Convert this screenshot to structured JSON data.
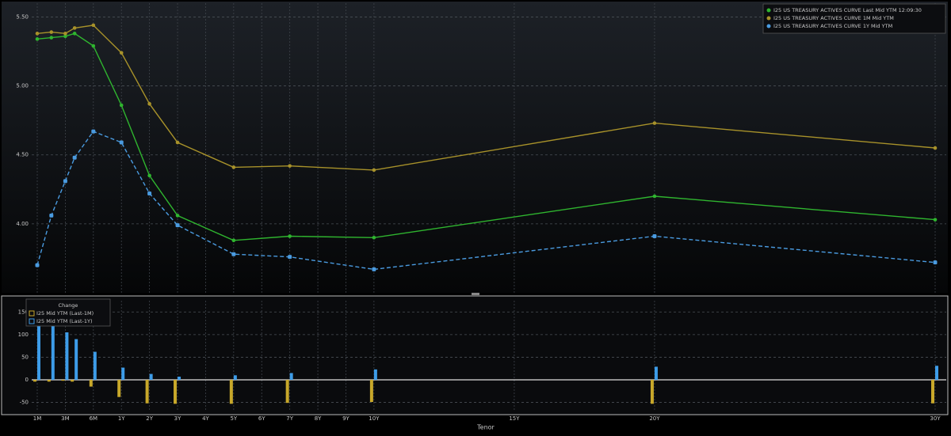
{
  "chart_data": [
    {
      "type": "line",
      "x": [
        0.083,
        0.167,
        0.25,
        0.333,
        0.5,
        1,
        2,
        3,
        5,
        7,
        10,
        20,
        30
      ],
      "xlim": [
        0.083,
        30
      ],
      "series": [
        {
          "name": "I25 US TREASURY ACTIVES CURVE Last Mid YTM 12:09:30",
          "color": "#2fb52f",
          "linestyle": "solid",
          "values": [
            5.34,
            5.35,
            5.36,
            5.38,
            5.29,
            4.86,
            4.35,
            4.06,
            3.88,
            3.91,
            3.9,
            4.2,
            4.03
          ]
        },
        {
          "name": "I25 US TREASURY ACTIVES CURVE 1M Mid YTM",
          "color": "#a8922a",
          "linestyle": "solid",
          "values": [
            5.38,
            5.39,
            5.38,
            5.42,
            5.44,
            5.24,
            4.87,
            4.59,
            4.41,
            4.42,
            4.39,
            4.73,
            4.55
          ]
        },
        {
          "name": "I25 US TREASURY ACTIVES CURVE 1Y Mid YTM",
          "color": "#4a9be0",
          "linestyle": "dashed",
          "values": [
            3.7,
            4.06,
            4.31,
            4.48,
            4.67,
            4.59,
            4.22,
            3.99,
            3.78,
            3.76,
            3.67,
            3.91,
            3.72
          ]
        }
      ],
      "ylim": [
        3.5,
        5.6
      ],
      "yticks": [
        {
          "value": 5.5,
          "label": "5.50"
        },
        {
          "value": 5,
          "label": "5.00"
        },
        {
          "value": 4.5,
          "label": "4.50"
        },
        {
          "value": 4,
          "label": "4.00"
        }
      ],
      "grid": true,
      "legend": "upper right"
    },
    {
      "type": "bar",
      "legend_title": "Change",
      "x": [
        0.083,
        0.167,
        0.25,
        0.333,
        0.5,
        1,
        2,
        3,
        5,
        7,
        10,
        20,
        30
      ],
      "xlim": [
        0.083,
        30
      ],
      "xticks": [
        {
          "value": 0.083,
          "label": "1M"
        },
        {
          "value": 0.25,
          "label": "3M"
        },
        {
          "value": 0.5,
          "label": "6M"
        },
        {
          "value": 1,
          "label": "1Y"
        },
        {
          "value": 2,
          "label": "2Y"
        },
        {
          "value": 3,
          "label": "3Y"
        },
        {
          "value": 4,
          "label": "4Y"
        },
        {
          "value": 5,
          "label": "5Y"
        },
        {
          "value": 6,
          "label": "6Y"
        },
        {
          "value": 7,
          "label": "7Y"
        },
        {
          "value": 8,
          "label": "8Y"
        },
        {
          "value": 9,
          "label": "9Y"
        },
        {
          "value": 10,
          "label": "10Y"
        },
        {
          "value": 15,
          "label": "15Y"
        },
        {
          "value": 20,
          "label": "20Y"
        },
        {
          "value": 30,
          "label": "30Y"
        }
      ],
      "xlabel": "Tenor",
      "series": [
        {
          "name": "I25 Mid YTM (Last-1M)",
          "color": "#c8a82a",
          "values": [
            -4,
            -4,
            -2,
            -4,
            -15,
            -38,
            -52,
            -53,
            -53,
            -51,
            -49,
            -53,
            -52
          ]
        },
        {
          "name": "I25 Mid YTM (Last-1Y)",
          "color": "#3d9ce8",
          "values": [
            164,
            129,
            105,
            90,
            62,
            27,
            13,
            7,
            10,
            15,
            23,
            29,
            31
          ]
        }
      ],
      "ylim": [
        -70,
        175
      ],
      "yticks": [
        150,
        100,
        50,
        0,
        -50
      ],
      "grid": true,
      "legend": "upper left"
    }
  ]
}
